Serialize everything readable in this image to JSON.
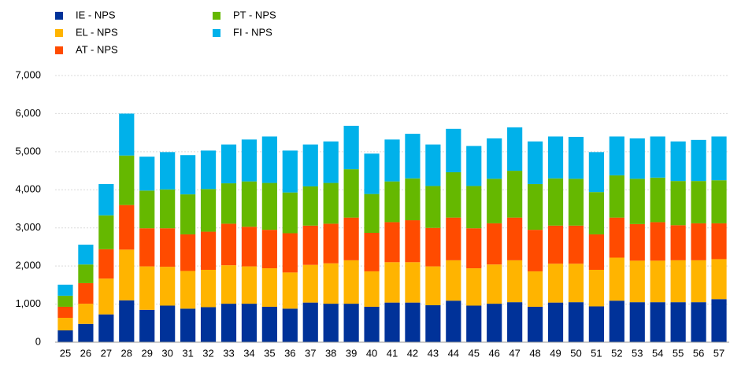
{
  "chart_data": {
    "type": "stacked_bar",
    "categories": [
      "25",
      "26",
      "27",
      "28",
      "29",
      "30",
      "31",
      "32",
      "33",
      "34",
      "35",
      "36",
      "37",
      "38",
      "39",
      "40",
      "41",
      "42",
      "43",
      "44",
      "45",
      "46",
      "47",
      "48",
      "49",
      "50",
      "51",
      "52",
      "53",
      "54",
      "55",
      "56",
      "57"
    ],
    "series": [
      {
        "name": "IE - NPS",
        "color": "#003299",
        "values": [
          310,
          480,
          730,
          1100,
          850,
          960,
          880,
          920,
          1010,
          1010,
          930,
          880,
          1040,
          1010,
          1010,
          930,
          1040,
          1040,
          970,
          1090,
          960,
          1010,
          1050,
          930,
          1040,
          1050,
          940,
          1090,
          1050,
          1050,
          1050,
          1050,
          1130
        ]
      },
      {
        "name": "EL - NPS",
        "color": "#FFB400",
        "values": [
          330,
          530,
          940,
          1330,
          1140,
          1020,
          990,
          980,
          1010,
          980,
          1010,
          950,
          990,
          1060,
          1140,
          930,
          1060,
          1060,
          1020,
          1060,
          980,
          1030,
          1100,
          930,
          1020,
          1010,
          960,
          1130,
          1090,
          1090,
          1100,
          1100,
          1050
        ]
      },
      {
        "name": "AT - NPS",
        "color": "#FF4B00",
        "values": [
          290,
          540,
          770,
          1170,
          1000,
          1010,
          960,
          1000,
          1090,
          1040,
          1010,
          1030,
          1030,
          1040,
          1120,
          1010,
          1050,
          1100,
          1010,
          1120,
          1050,
          1080,
          1120,
          1090,
          1000,
          1000,
          930,
          1050,
          960,
          1010,
          920,
          970,
          940
        ]
      },
      {
        "name": "PT - NPS",
        "color": "#65B800",
        "values": [
          290,
          490,
          890,
          1300,
          990,
          1020,
          1050,
          1120,
          1060,
          1190,
          1230,
          1070,
          1030,
          1070,
          1270,
          1020,
          1070,
          1100,
          1100,
          1190,
          1110,
          1170,
          1230,
          1200,
          1240,
          1230,
          1110,
          1110,
          1190,
          1170,
          1160,
          1110,
          1130
        ]
      },
      {
        "name": "FI - NPS",
        "color": "#00B1EA",
        "values": [
          290,
          520,
          820,
          1100,
          890,
          980,
          1030,
          1010,
          1020,
          1100,
          1220,
          1100,
          1100,
          1090,
          1140,
          1060,
          1100,
          1170,
          1090,
          1140,
          1050,
          1060,
          1140,
          1120,
          1100,
          1100,
          1050,
          1020,
          1060,
          1080,
          1040,
          1080,
          1150
        ]
      }
    ],
    "ylim": [
      0,
      7000
    ],
    "yticks": [
      0,
      {
        "value": 1000,
        "label": "1,000"
      },
      {
        "value": 2000,
        "label": "2,000"
      },
      {
        "value": 3000,
        "label": "3,000"
      },
      {
        "value": 4000,
        "label": "4,000"
      },
      {
        "value": 5000,
        "label": "5,000"
      },
      {
        "value": 6000,
        "label": "6,000"
      },
      {
        "value": 7000,
        "label": "7,000"
      }
    ],
    "grid": true
  }
}
